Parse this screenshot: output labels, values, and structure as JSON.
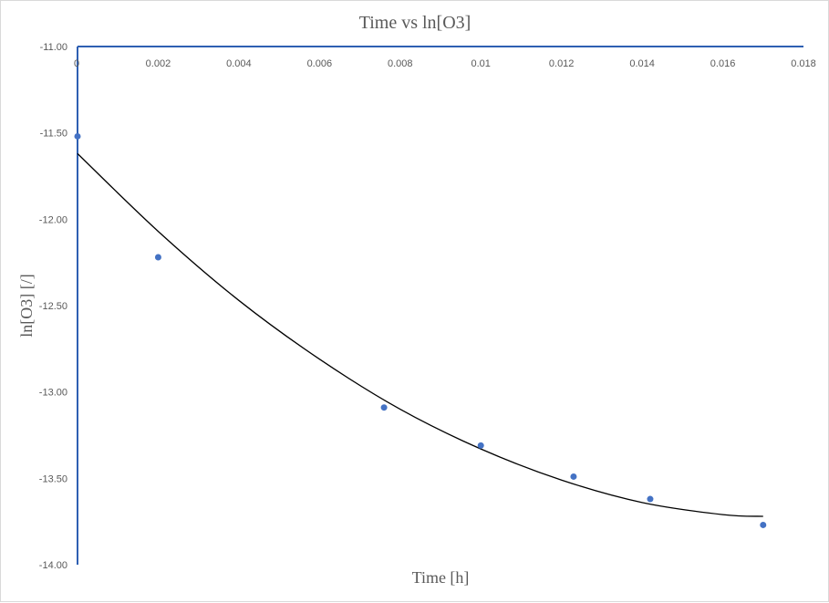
{
  "chart_data": {
    "type": "scatter",
    "title": "Time vs ln[O3]",
    "xlabel": "Time [h]",
    "ylabel": "ln[O3] [/]",
    "xlim": [
      0,
      0.018
    ],
    "ylim": [
      -14.0,
      -11.0
    ],
    "x_ticks": [
      "0",
      "0.002",
      "0.004",
      "0.006",
      "0.008",
      "0.01",
      "0.012",
      "0.014",
      "0.016",
      "0.018"
    ],
    "y_ticks": [
      "-11.00",
      "-11.50",
      "-12.00",
      "-12.50",
      "-13.00",
      "-13.50",
      "-14.00"
    ],
    "x_axis_position": "top",
    "grid": false,
    "legend": "none",
    "colors": {
      "axis": "#2e5fb2",
      "points": "#4472c4",
      "trendline": "#000000",
      "text": "#595959",
      "border": "#d9d9d9"
    },
    "series": [
      {
        "type": "scatter",
        "points": [
          [
            0,
            -11.52
          ],
          [
            0.002,
            -12.22
          ],
          [
            0.0076,
            -13.09
          ],
          [
            0.01,
            -13.31
          ],
          [
            0.0123,
            -13.49
          ],
          [
            0.0142,
            -13.62
          ],
          [
            0.017,
            -13.77
          ]
        ]
      },
      {
        "type": "trendline",
        "points": [
          [
            0,
            -11.62
          ],
          [
            0.002,
            -12.07
          ],
          [
            0.004,
            -12.47
          ],
          [
            0.006,
            -12.81
          ],
          [
            0.008,
            -13.1
          ],
          [
            0.01,
            -13.33
          ],
          [
            0.012,
            -13.51
          ],
          [
            0.014,
            -13.64
          ],
          [
            0.016,
            -13.71
          ],
          [
            0.017,
            -13.72
          ]
        ]
      }
    ]
  }
}
